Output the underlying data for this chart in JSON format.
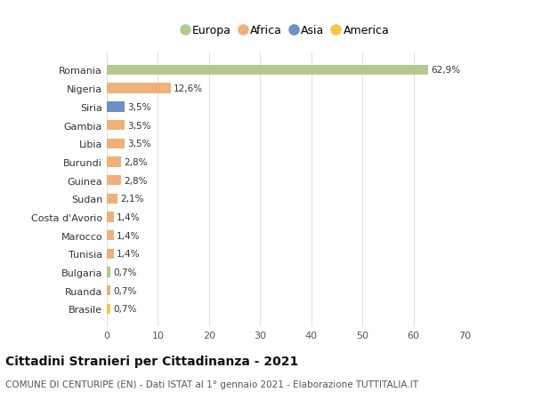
{
  "countries": [
    "Romania",
    "Nigeria",
    "Siria",
    "Gambia",
    "Libia",
    "Burundi",
    "Guinea",
    "Sudan",
    "Costa d'Avorio",
    "Marocco",
    "Tunisia",
    "Bulgaria",
    "Ruanda",
    "Brasile"
  ],
  "values": [
    62.9,
    12.6,
    3.5,
    3.5,
    3.5,
    2.8,
    2.8,
    2.1,
    1.4,
    1.4,
    1.4,
    0.7,
    0.7,
    0.7
  ],
  "labels": [
    "62,9%",
    "12,6%",
    "3,5%",
    "3,5%",
    "3,5%",
    "2,8%",
    "2,8%",
    "2,1%",
    "1,4%",
    "1,4%",
    "1,4%",
    "0,7%",
    "0,7%",
    "0,7%"
  ],
  "colors": [
    "#b5c98e",
    "#f0b07a",
    "#6e8fc4",
    "#f0b07a",
    "#f0b07a",
    "#f0b07a",
    "#f0b07a",
    "#f0b07a",
    "#f0b07a",
    "#f0b07a",
    "#f0b07a",
    "#b5c98e",
    "#f0b07a",
    "#f5c842"
  ],
  "legend_labels": [
    "Europa",
    "Africa",
    "Asia",
    "America"
  ],
  "legend_colors": [
    "#b5c98e",
    "#f0b07a",
    "#6e8fc4",
    "#f5c842"
  ],
  "title": "Cittadini Stranieri per Cittadinanza - 2021",
  "subtitle": "COMUNE DI CENTURIPE (EN) - Dati ISTAT al 1° gennaio 2021 - Elaborazione TUTTITALIA.IT",
  "xlim": [
    0,
    70
  ],
  "xticks": [
    0,
    10,
    20,
    30,
    40,
    50,
    60,
    70
  ],
  "background_color": "#ffffff",
  "grid_color": "#e0e0e0",
  "bar_height": 0.55
}
